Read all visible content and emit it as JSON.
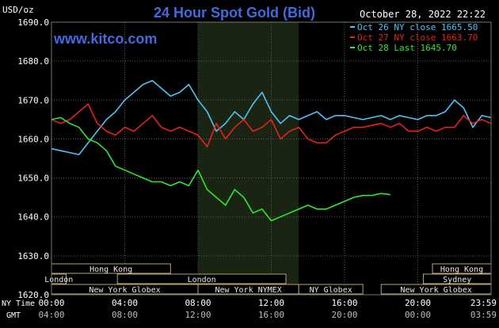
{
  "header": {
    "units": "USD/oz",
    "title": "24 Hour Spot Gold (Bid)",
    "timestamp": "October 28, 2022 22:22",
    "brand": "www.kitco.com"
  },
  "colors": {
    "background": "#000000",
    "grid": "#5a5a5a",
    "axis_text": "#ffffff",
    "title": "#4169e1",
    "timestamp": "#ffffff",
    "shaded_region": "#1a2412",
    "session_box_fill": "#000000",
    "session_box_stroke": "#b8a56a",
    "session_text": "#e8e8e8"
  },
  "chart_data": {
    "type": "line",
    "title": "24 Hour Spot Gold (Bid)",
    "ylabel": "USD/oz",
    "xlabel": "",
    "ylim": [
      1620,
      1690
    ],
    "xlim": [
      0,
      24
    ],
    "y_ticks": [
      "1620.0",
      "1630.0",
      "1640.0",
      "1650.0",
      "1660.0",
      "1670.0",
      "1680.0",
      "1690.0"
    ],
    "x_ticks": [
      {
        "ny": "00:00",
        "gmt": "04:00"
      },
      {
        "ny": "04:00",
        "gmt": "08:00"
      },
      {
        "ny": "08:00",
        "gmt": "12:00"
      },
      {
        "ny": "12:00",
        "gmt": "16:00"
      },
      {
        "ny": "16:00",
        "gmt": "20:00"
      },
      {
        "ny": "20:00",
        "gmt": "00:00"
      },
      {
        "ny": "23:59",
        "gmt": "03:59"
      }
    ],
    "x_axis_row_labels": {
      "ny": "NY Time",
      "gmt": "GMT"
    },
    "grid": true,
    "shaded_session": [
      8,
      13.5
    ],
    "legend": [
      {
        "label": "Oct 26 NY close 1665.50",
        "color": "#4fc3f7"
      },
      {
        "label": "Oct 27 NY close 1663.70",
        "color": "#e8211d"
      },
      {
        "label": "Oct 28 Last 1645.70",
        "color": "#2ee82e"
      }
    ],
    "series": [
      {
        "name": "Oct 26 NY close 1665.50",
        "color": "#4fc3f7",
        "x": [
          0,
          0.5,
          1,
          1.5,
          2,
          2.5,
          3,
          3.5,
          4,
          4.5,
          5,
          5.5,
          6,
          6.5,
          7,
          7.5,
          8,
          8.5,
          9,
          9.5,
          10,
          10.5,
          11,
          11.5,
          12,
          12.5,
          13,
          13.5,
          14,
          14.5,
          15,
          15.5,
          16,
          16.5,
          17,
          17.5,
          18,
          18.5,
          19,
          19.5,
          20,
          20.5,
          21,
          21.5,
          22,
          22.5,
          23,
          23.5,
          24
        ],
        "values": [
          1657.5,
          1657,
          1656.5,
          1656,
          1659,
          1662,
          1665,
          1667,
          1670,
          1672,
          1674,
          1675,
          1673,
          1671,
          1672,
          1674,
          1670,
          1667,
          1662,
          1664,
          1667,
          1665,
          1669,
          1672,
          1667,
          1664,
          1666,
          1665,
          1666,
          1667,
          1665,
          1666,
          1666,
          1665.5,
          1665,
          1665.5,
          1666,
          1665,
          1666,
          1665.5,
          1665,
          1666,
          1666,
          1667,
          1670,
          1668,
          1663,
          1666,
          1665.5
        ]
      },
      {
        "name": "Oct 27 NY close 1663.70",
        "color": "#e8211d",
        "x": [
          0,
          0.5,
          1,
          1.5,
          2,
          2.5,
          3,
          3.5,
          4,
          4.5,
          5,
          5.5,
          6,
          6.5,
          7,
          7.5,
          8,
          8.5,
          9,
          9.5,
          10,
          10.5,
          11,
          11.5,
          12,
          12.5,
          13,
          13.5,
          14,
          14.5,
          15,
          15.5,
          16,
          16.5,
          17,
          17.5,
          18,
          18.5,
          19,
          19.5,
          20,
          20.5,
          21,
          21.5,
          22,
          22.5,
          23,
          23.5,
          24
        ],
        "values": [
          1665,
          1664,
          1665,
          1667,
          1669,
          1664,
          1662,
          1661,
          1663,
          1662,
          1664,
          1666,
          1663,
          1662,
          1663,
          1662,
          1661,
          1658,
          1664,
          1660,
          1663,
          1665,
          1662,
          1663,
          1665,
          1660,
          1662,
          1663,
          1660,
          1659,
          1659,
          1661,
          1662,
          1663,
          1663,
          1663.5,
          1664,
          1663,
          1664,
          1662,
          1662,
          1663,
          1662,
          1663,
          1663,
          1666,
          1664,
          1665,
          1664
        ]
      },
      {
        "name": "Oct 28 Last 1645.70",
        "color": "#2ee82e",
        "x": [
          0,
          0.5,
          1,
          1.5,
          2,
          2.5,
          3,
          3.5,
          4,
          4.5,
          5,
          5.5,
          6,
          6.5,
          7,
          7.5,
          8,
          8.5,
          9,
          9.5,
          10,
          10.5,
          11,
          11.5,
          12,
          12.5,
          13,
          13.5,
          14,
          14.5,
          15,
          15.5,
          16,
          16.5,
          17,
          17.5,
          18,
          18.5
        ],
        "values": [
          1665,
          1665.5,
          1664,
          1663,
          1660,
          1659,
          1657,
          1653,
          1652,
          1651,
          1650,
          1649,
          1649,
          1648,
          1649,
          1648,
          1652,
          1647,
          1645,
          1643,
          1647,
          1645,
          1641,
          1642,
          1639,
          1640,
          1641,
          1642,
          1643,
          1642,
          1642,
          1643,
          1644,
          1645,
          1645.5,
          1645.5,
          1646,
          1645.7
        ]
      }
    ]
  },
  "sessions": [
    {
      "label": "Hong Kong",
      "row": 0,
      "start": 0,
      "end": 6.5
    },
    {
      "label": "Hong Kong",
      "row": 0,
      "start": 20.8,
      "end": 24
    },
    {
      "label": "London",
      "row": 1,
      "start": 0,
      "end": 0.8
    },
    {
      "label": "London",
      "row": 1,
      "start": 3.6,
      "end": 12.8
    },
    {
      "label": "Sydney",
      "row": 1,
      "start": 20.3,
      "end": 24
    },
    {
      "label": "New York Globex",
      "row": 2,
      "start": 0,
      "end": 8
    },
    {
      "label": "New York NYMEX",
      "row": 2,
      "start": 8,
      "end": 13.5
    },
    {
      "label": "NY Globex",
      "row": 2,
      "start": 13.5,
      "end": 17
    },
    {
      "label": "New York Globex",
      "row": 2,
      "start": 18,
      "end": 24
    }
  ]
}
